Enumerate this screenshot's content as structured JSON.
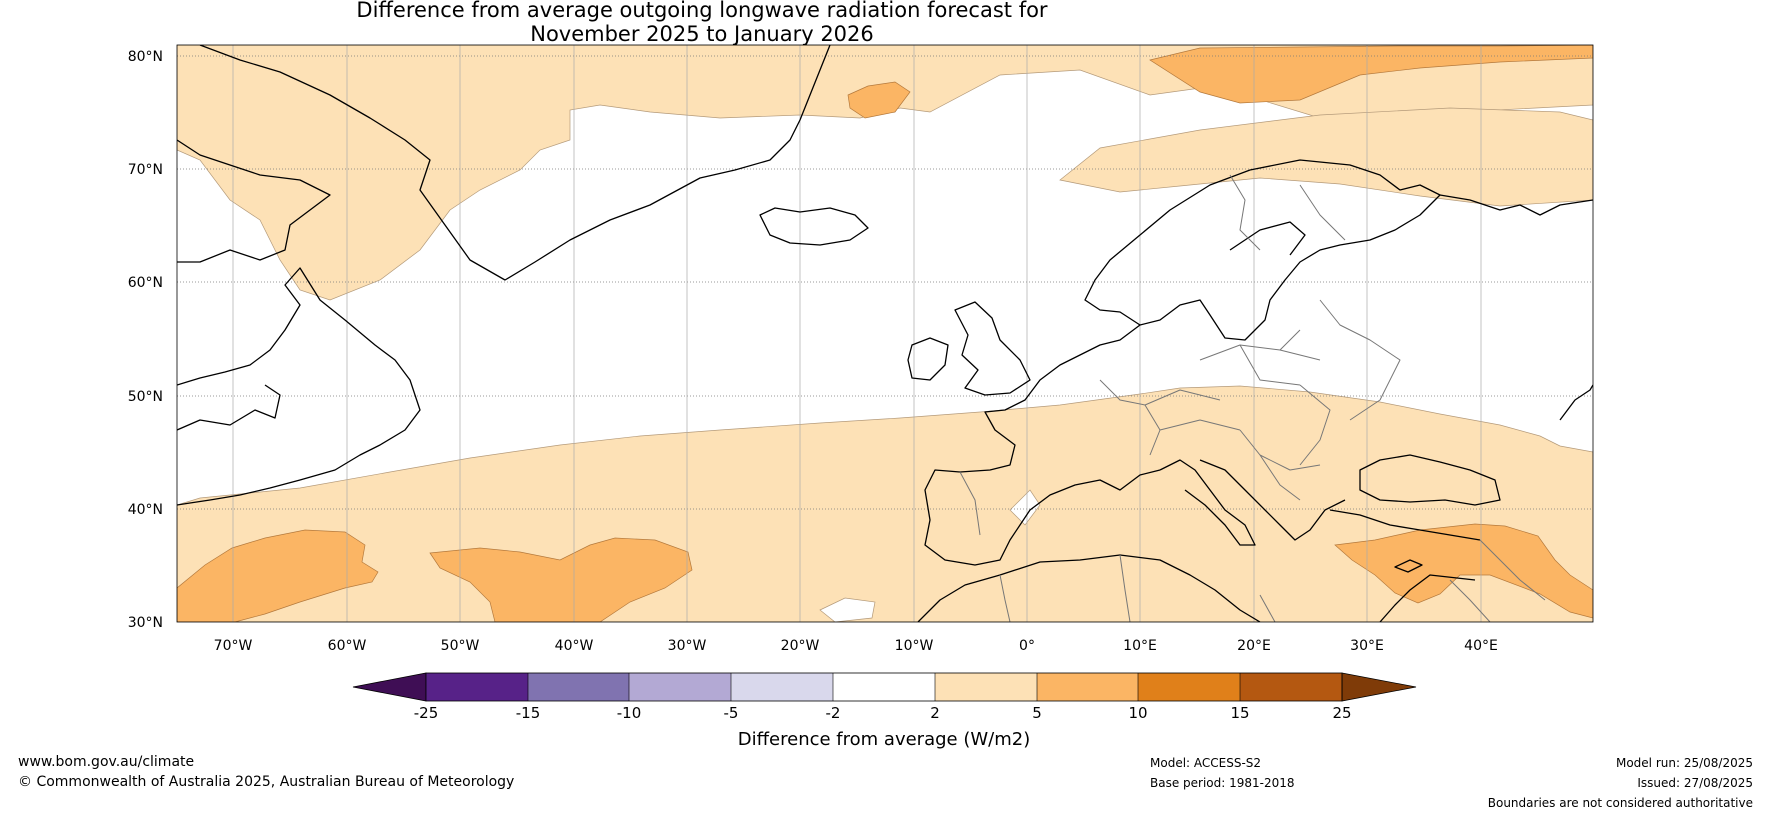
{
  "title_line1": "Difference from average outgoing longwave radiation forecast for",
  "title_line2": "November 2025 to January 2026",
  "lat_labels": [
    "80°N",
    "70°N",
    "60°N",
    "50°N",
    "40°N",
    "30°N"
  ],
  "lon_labels": [
    "70°W",
    "60°W",
    "50°W",
    "40°W",
    "30°W",
    "20°W",
    "10°W",
    "0°",
    "10°E",
    "20°E",
    "30°E",
    "40°E"
  ],
  "colorbar": {
    "label": "Difference from average (W/m2)",
    "ticks": [
      "-25",
      "-15",
      "-10",
      "-5",
      "-2",
      "2",
      "5",
      "10",
      "15",
      "25"
    ],
    "colors": [
      "#3f0e55",
      "#572288",
      "#8073b0",
      "#b3a9d4",
      "#d9d8ec",
      "#ffffff",
      "#fde1b6",
      "#fbb564",
      "#e0801a",
      "#b45811",
      "#7f3b08"
    ]
  },
  "footer": {
    "url": "www.bom.gov.au/climate",
    "copyright": "© Commonwealth of Australia 2025, Australian Bureau of Meteorology",
    "model": "Model: ACCESS-S2",
    "base_period": "Base period: 1981-2018",
    "model_run": "Model run: 25/08/2025",
    "issued": "Issued: 27/08/2025",
    "disclaimer": "Boundaries are not considered authoritative"
  }
}
